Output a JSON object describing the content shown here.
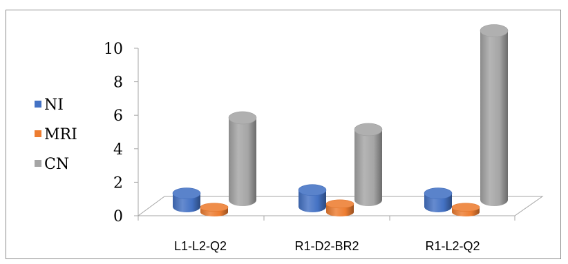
{
  "chart_data": {
    "type": "bar",
    "title": "",
    "xlabel": "",
    "ylabel": "",
    "categories": [
      "L1-L2-Q2",
      "R1-D2-BR2",
      "R1-L2-Q2"
    ],
    "series": [
      {
        "name": "NI",
        "values": [
          0.8,
          1.0,
          0.8
        ]
      },
      {
        "name": "MRI",
        "values": [
          0.3,
          0.5,
          0.3
        ]
      },
      {
        "name": "CN",
        "values": [
          4.9,
          4.2,
          10.1
        ]
      }
    ],
    "ylim": [
      0,
      10
    ],
    "yticks": [
      "0",
      "2",
      "4",
      "6",
      "8",
      "10"
    ],
    "grid": false,
    "legend": "left"
  },
  "colors": {
    "NI": "#4472c4",
    "MRI": "#ed7d31",
    "CN": "#a5a5a5"
  }
}
